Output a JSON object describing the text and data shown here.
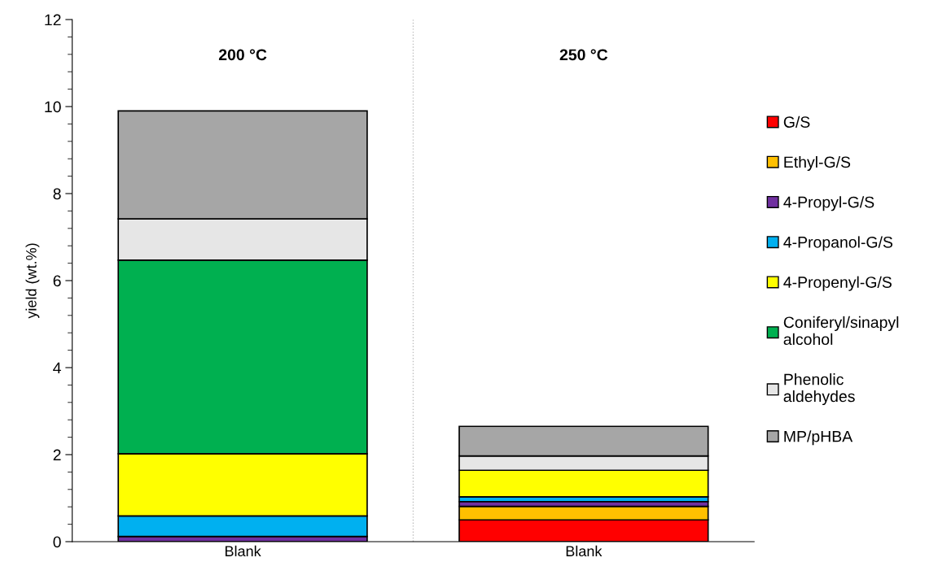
{
  "chart_data": {
    "type": "bar",
    "stacked": true,
    "ylabel": "yield (wt.%)",
    "categories": [
      "Blank",
      "Blank"
    ],
    "series": [
      {
        "name": "G/S",
        "color": "#ff0000",
        "values": [
          null,
          0.5
        ]
      },
      {
        "name": "Ethyl-G/S",
        "color": "#ffc000",
        "values": [
          null,
          0.31
        ]
      },
      {
        "name": "4-Propyl-G/S",
        "color": "#7030a0",
        "values": [
          0.12,
          0.11
        ]
      },
      {
        "name": "4-Propanol-G/S",
        "color": "#00b0f0",
        "values": [
          0.47,
          0.11
        ]
      },
      {
        "name": "4-Propenyl-G/S",
        "color": "#ffff00",
        "values": [
          1.43,
          0.61
        ]
      },
      {
        "name": "Coniferyl/sinapyl\nalcohol",
        "color": "#00b050",
        "values": [
          4.45,
          0
        ]
      },
      {
        "name": "Phenolic\naldehydes",
        "color": "#e6e6e6",
        "values": [
          0.95,
          0.33
        ]
      },
      {
        "name": "MP/pHBA",
        "color": "#a6a6a6",
        "values": [
          2.48,
          0.68
        ]
      }
    ],
    "annotations": [
      "200 °C",
      "250 °C"
    ],
    "ylim": [
      0,
      12
    ],
    "yticks": [
      0,
      2,
      4,
      6,
      8,
      10,
      12
    ],
    "grid": false,
    "legend": "right"
  }
}
